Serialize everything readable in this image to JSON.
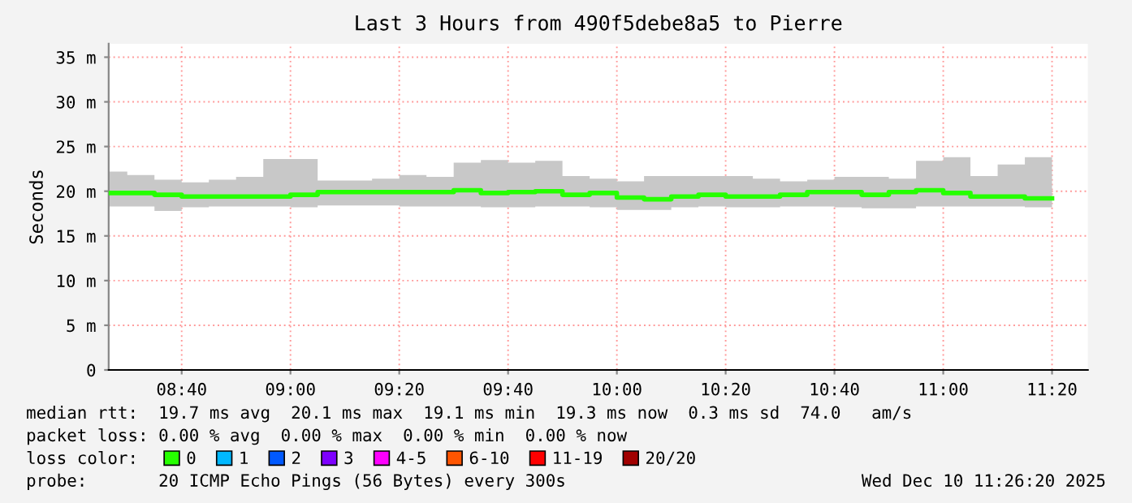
{
  "chart_data": {
    "type": "step",
    "title": "Last 3 Hours from 490f5debe8a5 to Pierre",
    "ylabel": "Seconds",
    "legend_title": "loss color:",
    "x": [
      8.443,
      8.5,
      8.5833,
      8.6667,
      8.75,
      8.8333,
      8.9167,
      9.0,
      9.0833,
      9.1667,
      9.25,
      9.3333,
      9.4167,
      9.5,
      9.5833,
      9.6667,
      9.75,
      9.8333,
      9.9167,
      10.0,
      10.0833,
      10.1667,
      10.25,
      10.3333,
      10.4167,
      10.5,
      10.5833,
      10.6667,
      10.75,
      10.8333,
      10.9167,
      11.0,
      11.0833,
      11.1667,
      11.25,
      11.3333
    ],
    "series": [
      {
        "name": "0",
        "color": "#26ff00",
        "values": [
          19.8,
          19.8,
          19.6,
          19.4,
          19.4,
          19.4,
          19.4,
          19.6,
          19.9,
          19.9,
          19.9,
          19.9,
          19.9,
          20.1,
          19.8,
          19.9,
          20.0,
          19.6,
          19.8,
          19.3,
          19.1,
          19.4,
          19.6,
          19.4,
          19.4,
          19.6,
          19.9,
          19.9,
          19.6,
          19.9,
          20.1,
          19.8,
          19.4,
          19.4,
          19.2,
          19.2
        ],
        "lower": [
          18.3,
          18.3,
          17.8,
          18.2,
          18.3,
          18.3,
          18.3,
          18.2,
          18.4,
          18.4,
          18.4,
          18.3,
          18.3,
          18.3,
          18.2,
          18.2,
          18.3,
          18.3,
          18.2,
          17.9,
          17.9,
          18.2,
          18.3,
          18.2,
          18.2,
          18.3,
          18.3,
          18.2,
          18.1,
          18.1,
          18.3,
          18.3,
          18.3,
          18.3,
          18.2,
          18.2
        ],
        "upper": [
          22.2,
          21.8,
          21.3,
          21.0,
          21.3,
          21.6,
          23.6,
          23.6,
          21.2,
          21.2,
          21.4,
          21.8,
          21.6,
          23.2,
          23.5,
          23.2,
          23.4,
          21.7,
          21.4,
          21.1,
          21.7,
          21.7,
          21.7,
          21.7,
          21.4,
          21.1,
          21.3,
          21.6,
          21.6,
          21.4,
          23.4,
          23.8,
          21.7,
          23.0,
          23.8,
          23.8
        ]
      },
      {
        "name": "1",
        "color": "#00b8ff",
        "values": [
          null,
          null,
          null,
          null,
          null,
          null,
          null,
          null,
          null,
          null,
          null,
          null,
          null,
          null,
          null,
          null,
          null,
          null,
          null,
          null,
          null,
          null,
          null,
          null,
          null,
          null,
          null,
          null,
          null,
          null,
          null,
          null,
          null,
          null,
          null,
          null
        ]
      },
      {
        "name": "2",
        "color": "#0059ff",
        "values": [
          null,
          null,
          null,
          null,
          null,
          null,
          null,
          null,
          null,
          null,
          null,
          null,
          null,
          null,
          null,
          null,
          null,
          null,
          null,
          null,
          null,
          null,
          null,
          null,
          null,
          null,
          null,
          null,
          null,
          null,
          null,
          null,
          null,
          null,
          null,
          null
        ]
      },
      {
        "name": "3",
        "color": "#7e00ff",
        "values": [
          null,
          null,
          null,
          null,
          null,
          null,
          null,
          null,
          null,
          null,
          null,
          null,
          null,
          null,
          null,
          null,
          null,
          null,
          null,
          null,
          null,
          null,
          null,
          null,
          null,
          null,
          null,
          null,
          null,
          null,
          null,
          null,
          null,
          null,
          null,
          null
        ]
      },
      {
        "name": "4-5",
        "color": "#ff00ff",
        "values": [
          null,
          null,
          null,
          null,
          null,
          null,
          null,
          null,
          null,
          null,
          null,
          null,
          null,
          null,
          null,
          null,
          null,
          null,
          null,
          null,
          null,
          null,
          null,
          null,
          null,
          null,
          null,
          null,
          null,
          null,
          null,
          null,
          null,
          null,
          null,
          null
        ]
      },
      {
        "name": "6-10",
        "color": "#ff5500",
        "values": [
          null,
          null,
          null,
          null,
          null,
          null,
          null,
          null,
          null,
          null,
          null,
          null,
          null,
          null,
          null,
          null,
          null,
          null,
          null,
          null,
          null,
          null,
          null,
          null,
          null,
          null,
          null,
          null,
          null,
          null,
          null,
          null,
          null,
          null,
          null,
          null
        ]
      },
      {
        "name": "11-19",
        "color": "#ff0000",
        "values": [
          null,
          null,
          null,
          null,
          null,
          null,
          null,
          null,
          null,
          null,
          null,
          null,
          null,
          null,
          null,
          null,
          null,
          null,
          null,
          null,
          null,
          null,
          null,
          null,
          null,
          null,
          null,
          null,
          null,
          null,
          null,
          null,
          null,
          null,
          null,
          null
        ]
      },
      {
        "name": "20/20",
        "color": "#a10000",
        "values": [
          null,
          null,
          null,
          null,
          null,
          null,
          null,
          null,
          null,
          null,
          null,
          null,
          null,
          null,
          null,
          null,
          null,
          null,
          null,
          null,
          null,
          null,
          null,
          null,
          null,
          null,
          null,
          null,
          null,
          null,
          null,
          null,
          null,
          null,
          null,
          null
        ]
      }
    ],
    "xlim": [
      8.443,
      11.443
    ],
    "xticks": [
      {
        "value": 8.6667,
        "label": "08:40"
      },
      {
        "value": 9.0,
        "label": "09:00"
      },
      {
        "value": 9.3333,
        "label": "09:20"
      },
      {
        "value": 9.6667,
        "label": "09:40"
      },
      {
        "value": 10.0,
        "label": "10:00"
      },
      {
        "value": 10.3333,
        "label": "10:20"
      },
      {
        "value": 10.6667,
        "label": "10:40"
      },
      {
        "value": 11.0,
        "label": "11:00"
      },
      {
        "value": 11.3333,
        "label": "11:20"
      }
    ],
    "ylim": [
      0,
      36.5
    ],
    "yticks": [
      0,
      {
        "value": 5,
        "label": "5 m"
      },
      {
        "value": 10,
        "label": "10 m"
      },
      {
        "value": 15,
        "label": "15 m"
      },
      {
        "value": 20,
        "label": "20 m"
      },
      {
        "value": 25,
        "label": "25 m"
      },
      {
        "value": 30,
        "label": "30 m"
      },
      {
        "value": 35,
        "label": "35 m"
      }
    ],
    "grid": true,
    "legend": "bottom",
    "annotations": [
      "median rtt:  19.7 ms avg  20.1 ms max  19.1 ms min  19.3 ms now  0.3 ms sd  74.0   am/s",
      "packet loss: 0.00 % avg  0.00 % max  0.00 % min  0.00 % now",
      "probe:       20 ICMP Echo Pings (56 Bytes) every 300s",
      "Wed Dec 10 11:26:20 2025"
    ]
  }
}
